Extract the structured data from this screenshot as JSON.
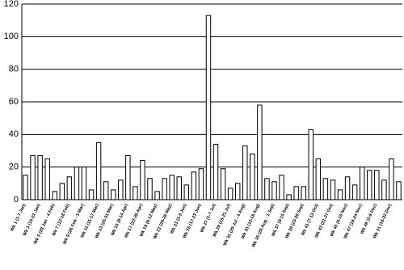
{
  "chart_data": {
    "type": "bar",
    "categories": [
      "Wk 1 (1-7 Jan)",
      null,
      "Wk 3 (15-21 Jan)",
      null,
      "Wk 5 (29 Jan - 4 Feb)",
      null,
      "Wk 7 (12-18 Feb)",
      null,
      "Wk 9 (26 Feb - 3 Mar)",
      null,
      "Wk 11 (11-17 Mar)",
      null,
      "Wk 13 (25-31 Mar)",
      null,
      "Wk 15 (8-14 Apr)",
      null,
      "Wk 17 (22-28 Apr)",
      null,
      "Wk 19 (6-12 May)",
      null,
      "Wk 21 (20-26 May)",
      null,
      "Wk 23 (3-9 Jun)",
      null,
      "Wk 25 (17-23 Jun)",
      null,
      "Wk 27 (1-7 Jul)",
      null,
      "Wk 29 (15-21 Jul)",
      null,
      "Wk 31 (29 Jul - 4 Aug)",
      null,
      "Wk 33 (12-18 Aug)",
      null,
      "Wk 35 (26 Aug - 1 Sep)",
      null,
      "Wk 37 (9-15 Sep)",
      null,
      "Wk 39 (23-29 Sep)",
      null,
      "Wk 41 (7-13 Oct)",
      null,
      "Wk 43 (21-27 Oct)",
      null,
      "Wk 45 (4-10 Nov)",
      null,
      "Wk 47 (18-24 Nov)",
      null,
      "Wk 49 (2-8 Dec)",
      null,
      "Wk 51 (16-22 Dec)",
      null
    ],
    "values": [
      15,
      27,
      27,
      25,
      5,
      10,
      14,
      20,
      20,
      6,
      35,
      11,
      6,
      12,
      27,
      8,
      24,
      13,
      5,
      13,
      15,
      14,
      9,
      17,
      19,
      113,
      34,
      19,
      7,
      10,
      33,
      28,
      58,
      13,
      11,
      15,
      3,
      8,
      8,
      43,
      25,
      13,
      12,
      6,
      14,
      9,
      20,
      18,
      18,
      12,
      25,
      11
    ],
    "color": "#ffffff",
    "ylim": [
      0,
      120
    ],
    "yticks": [
      0,
      20,
      40,
      60,
      80,
      100,
      120
    ],
    "grid": true
  }
}
